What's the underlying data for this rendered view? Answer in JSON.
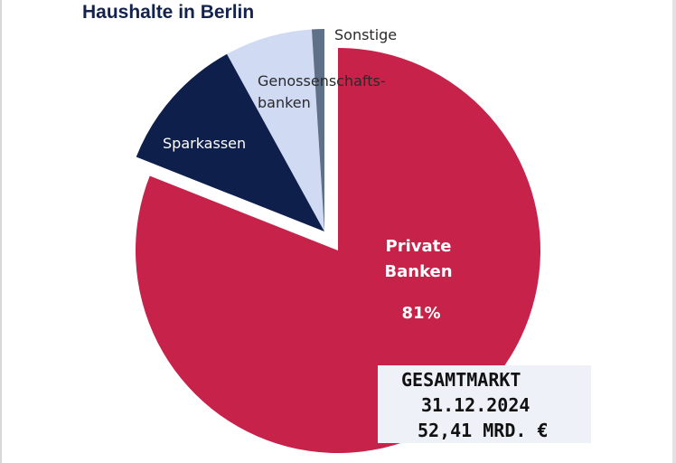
{
  "title": "Haushalte in Berlin",
  "chart_data": {
    "type": "pie",
    "title": "Haushalte in Berlin",
    "slices": [
      {
        "label": "Private Banken",
        "value": 81,
        "value_label": "81%",
        "color": "#c7224a"
      },
      {
        "label": "Sparkassen",
        "value": 11,
        "color": "#0f1f4b"
      },
      {
        "label": "Genossenschaftsbanken",
        "value": 7,
        "color": "#d0daf2"
      },
      {
        "label": "Sonstige",
        "value": 1,
        "color": "#5f7189"
      }
    ]
  },
  "labels": {
    "private_line1": "Private",
    "private_line2": "Banken",
    "private_pct": "81%",
    "sparkassen": "Sparkassen",
    "genossen_line1": "Genossenschafts-",
    "genossen_line2": "banken",
    "sonstige": "Sonstige"
  },
  "infobox": {
    "line1": "GESAMTMARKT",
    "line2": "31.12.2024",
    "line3": "52,41  MRD. €"
  }
}
